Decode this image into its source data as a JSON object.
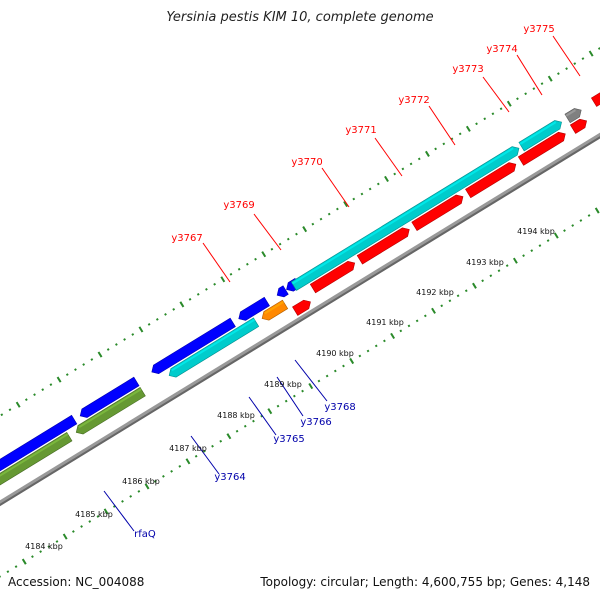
{
  "title": "Yersinia pestis KIM 10, complete genome",
  "accession": "Accession: NC_004088",
  "topology": "Topology: circular; Length: 4,600,755 bp; Genes: 4,148",
  "scale_labels": [
    "4184 kbp",
    "4185 kbp",
    "4186 kbp",
    "4187 kbp",
    "4188 kbp",
    "4189 kbp",
    "4190 kbp",
    "4191 kbp",
    "4192 kbp",
    "4193 kbp",
    "4194 kbp"
  ],
  "genes": [
    {
      "label": "y3767",
      "strand": "forward",
      "color": "#ff0000"
    },
    {
      "label": "y3769",
      "strand": "forward",
      "color": "#00cccc"
    },
    {
      "label": "y3770",
      "strand": "forward",
      "color": "#00cccc"
    },
    {
      "label": "y3771",
      "strand": "forward",
      "color": "#ff0000"
    },
    {
      "label": "y3772",
      "strand": "forward",
      "color": "#ff0000"
    },
    {
      "label": "y3773",
      "strand": "forward",
      "color": "#ff0000"
    },
    {
      "label": "y3774",
      "strand": "forward",
      "color": "#808080"
    },
    {
      "label": "y3775",
      "strand": "forward",
      "color": "#ff0000"
    },
    {
      "label": "rfaQ",
      "strand": "reverse",
      "color": "#669933"
    },
    {
      "label": "y3764",
      "strand": "reverse",
      "color": "#00cccc"
    },
    {
      "label": "y3765",
      "strand": "reverse",
      "color": "#ff8800"
    },
    {
      "label": "y3766",
      "strand": "reverse",
      "color": "#0000ff"
    },
    {
      "label": "y3768",
      "strand": "reverse",
      "color": "#0000ff"
    }
  ],
  "colors": {
    "forward_label": "#ff0000",
    "reverse_label": "#0000aa",
    "backbone": "#999999",
    "tick": "#2a8a2a"
  }
}
